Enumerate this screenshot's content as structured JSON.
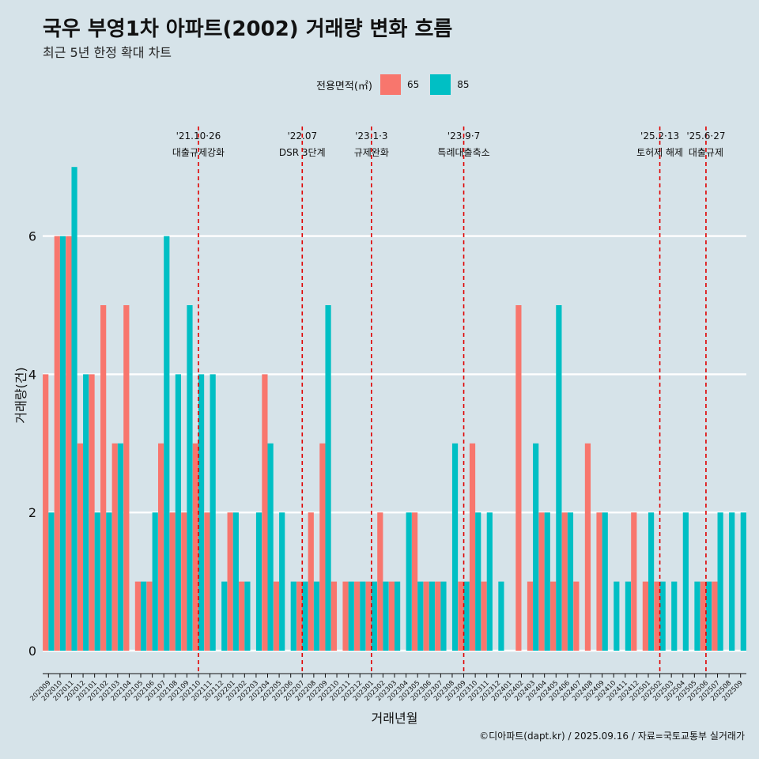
{
  "title": "국우 부영1차 아파트(2002) 거래량 변화 흐름",
  "subtitle": "최근 5년 한정 확대 차트",
  "legend": {
    "title": "전용면적(㎡)",
    "items": [
      {
        "label": "65",
        "color": "#f8766d"
      },
      {
        "label": "85",
        "color": "#00bfc4"
      }
    ]
  },
  "caption": "©디아파트(dapt.kr) / 2025.09.16 / 자료=국토교통부 실거래가",
  "chart_data": {
    "type": "bar",
    "xlabel": "거래년월",
    "ylabel": "거래량(건)",
    "ylim": [
      0,
      7
    ],
    "yticks": [
      0,
      2,
      4,
      6
    ],
    "grid": true,
    "categories": [
      "202009",
      "202010",
      "202011",
      "202012",
      "202101",
      "202102",
      "202103",
      "202104",
      "202105",
      "202106",
      "202107",
      "202108",
      "202109",
      "202110",
      "202111",
      "202112",
      "202201",
      "202202",
      "202203",
      "202204",
      "202205",
      "202206",
      "202207",
      "202208",
      "202209",
      "202210",
      "202211",
      "202212",
      "202301",
      "202302",
      "202303",
      "202304",
      "202305",
      "202306",
      "202307",
      "202308",
      "202309",
      "202310",
      "202311",
      "202312",
      "202401",
      "202402",
      "202403",
      "202404",
      "202405",
      "202406",
      "202407",
      "202408",
      "202409",
      "202410",
      "202411",
      "202412",
      "202501",
      "202502",
      "202503",
      "202504",
      "202505",
      "202506",
      "202507",
      "202508",
      "202509"
    ],
    "series": [
      {
        "name": "65",
        "color": "#f8766d",
        "values": [
          4,
          6,
          6,
          3,
          4,
          5,
          3,
          5,
          1,
          1,
          3,
          2,
          2,
          3,
          2,
          0,
          2,
          1,
          0,
          4,
          1,
          0,
          1,
          2,
          3,
          1,
          1,
          1,
          1,
          2,
          1,
          0,
          2,
          1,
          1,
          0,
          1,
          3,
          1,
          0,
          0,
          5,
          1,
          2,
          1,
          2,
          1,
          3,
          2,
          0,
          0,
          2,
          1,
          1,
          0,
          0,
          0,
          1,
          1,
          0,
          0
        ]
      },
      {
        "name": "85",
        "color": "#00bfc4",
        "values": [
          2,
          6,
          7,
          4,
          2,
          2,
          3,
          0,
          1,
          2,
          6,
          4,
          5,
          4,
          4,
          1,
          2,
          1,
          2,
          3,
          2,
          1,
          1,
          1,
          5,
          0,
          1,
          1,
          1,
          1,
          1,
          2,
          1,
          1,
          1,
          3,
          1,
          2,
          2,
          1,
          0,
          0,
          3,
          2,
          5,
          2,
          0,
          0,
          2,
          1,
          1,
          0,
          2,
          1,
          1,
          2,
          1,
          1,
          2,
          2,
          2
        ]
      }
    ],
    "events": [
      {
        "category": "202110",
        "date": "'21.10·26",
        "label": "대출규제강화"
      },
      {
        "category": "202207",
        "date": "'22.07",
        "label": "DSR 3단계"
      },
      {
        "category": "202301",
        "date": "'23.1·3",
        "label": "규제완화"
      },
      {
        "category": "202309",
        "date": "'23.9·7",
        "label": "특례대출축소"
      },
      {
        "category": "202502",
        "date": "'25.2·13",
        "label": "토허제 해제"
      },
      {
        "category": "202506",
        "date": "'25.6·27",
        "label": "대출규제"
      }
    ]
  }
}
